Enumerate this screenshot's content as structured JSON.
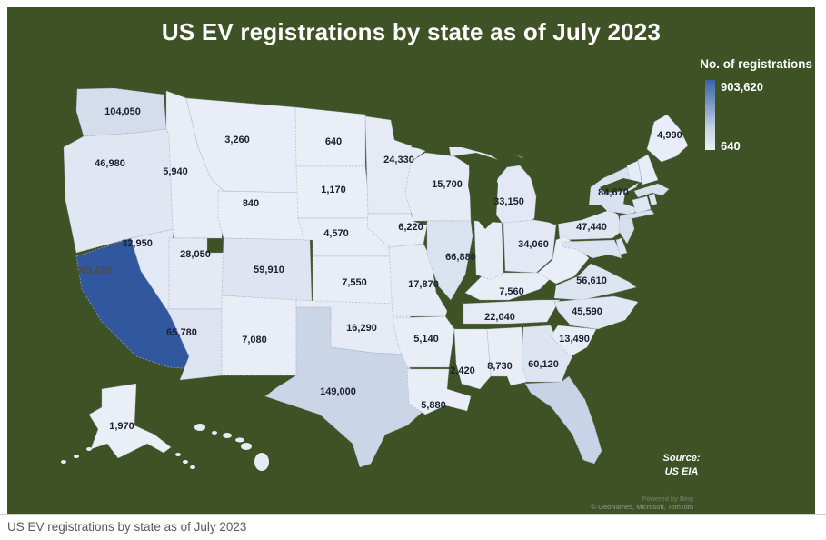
{
  "page": {
    "title": "US EV registrations by state as of July 2023",
    "caption": "US EV registrations by state as of July 2023"
  },
  "legend": {
    "title": "No. of registrations",
    "max_label": "903,620",
    "min_label": "640"
  },
  "source": {
    "label": "Source:",
    "value": "US EIA"
  },
  "attribution": {
    "line1": "Powered by Bing",
    "line2": "© GeoNames, Microsoft, TomTom"
  },
  "colors": {
    "background": "#3e5226",
    "state_low": "#eaeef7",
    "state_high": "#31589f",
    "state_border": "#a6b1c4",
    "value_label": "#1b2130",
    "ca_value_label": "#4b4f31",
    "caption_text": "#595959"
  },
  "chart_data": {
    "type": "heatmap",
    "subtype": "choropleth-us-states",
    "title": "US EV registrations by state as of July 2023",
    "unit": "EV registrations",
    "legend": {
      "min": 640,
      "max": 903620
    },
    "states": [
      {
        "abbr": "WA",
        "name": "Washington",
        "value": 104050,
        "label": "104,050"
      },
      {
        "abbr": "OR",
        "name": "Oregon",
        "value": 46980,
        "label": "46,980"
      },
      {
        "abbr": "CA",
        "name": "California",
        "value": 903620,
        "label": "903,620"
      },
      {
        "abbr": "NV",
        "name": "Nevada",
        "value": 32950,
        "label": "32,950"
      },
      {
        "abbr": "ID",
        "name": "Idaho",
        "value": 5940,
        "label": "5,940"
      },
      {
        "abbr": "MT",
        "name": "Montana",
        "value": 3260,
        "label": "3,260"
      },
      {
        "abbr": "WY",
        "name": "Wyoming",
        "value": 840,
        "label": "840"
      },
      {
        "abbr": "UT",
        "name": "Utah",
        "value": 28050,
        "label": "28,050"
      },
      {
        "abbr": "CO",
        "name": "Colorado",
        "value": 59910,
        "label": "59,910"
      },
      {
        "abbr": "AZ",
        "name": "Arizona",
        "value": 65780,
        "label": "65,780"
      },
      {
        "abbr": "NM",
        "name": "New Mexico",
        "value": 7080,
        "label": "7,080"
      },
      {
        "abbr": "ND",
        "name": "North Dakota",
        "value": 640,
        "label": "640"
      },
      {
        "abbr": "SD",
        "name": "South Dakota",
        "value": 1170,
        "label": "1,170"
      },
      {
        "abbr": "NE",
        "name": "Nebraska",
        "value": 4570,
        "label": "4,570"
      },
      {
        "abbr": "KS",
        "name": "Kansas",
        "value": 7550,
        "label": "7,550"
      },
      {
        "abbr": "OK",
        "name": "Oklahoma",
        "value": 16290,
        "label": "16,290"
      },
      {
        "abbr": "TX",
        "name": "Texas",
        "value": 149000,
        "label": "149,000"
      },
      {
        "abbr": "MN",
        "name": "Minnesota",
        "value": 24330,
        "label": "24,330"
      },
      {
        "abbr": "IA",
        "name": "Iowa",
        "value": 6220,
        "label": "6,220"
      },
      {
        "abbr": "MO",
        "name": "Missouri",
        "value": 17870,
        "label": "17,870"
      },
      {
        "abbr": "AR",
        "name": "Arkansas",
        "value": 5140,
        "label": "5,140"
      },
      {
        "abbr": "LA",
        "name": "Louisiana",
        "value": 5880,
        "label": "5,880"
      },
      {
        "abbr": "WI",
        "name": "Wisconsin",
        "value": 15700,
        "label": "15,700"
      },
      {
        "abbr": "IL",
        "name": "Illinois",
        "value": 66880,
        "label": "66,880"
      },
      {
        "abbr": "MI",
        "name": "Michigan",
        "value": 33150,
        "label": "33,150"
      },
      {
        "abbr": "OH",
        "name": "Ohio",
        "value": 34060,
        "label": "34,060"
      },
      {
        "abbr": "KY",
        "name": "Kentucky",
        "value": 7560,
        "label": "7,560"
      },
      {
        "abbr": "TN",
        "name": "Tennessee",
        "value": 22040,
        "label": "22,040"
      },
      {
        "abbr": "MS",
        "name": "Mississippi",
        "value": 2420,
        "label": "2,420"
      },
      {
        "abbr": "AL",
        "name": "Alabama",
        "value": 8730,
        "label": "8,730"
      },
      {
        "abbr": "GA",
        "name": "Georgia",
        "value": 60120,
        "label": "60,120"
      },
      {
        "abbr": "SC",
        "name": "South Carolina",
        "value": 13490,
        "label": "13,490"
      },
      {
        "abbr": "NC",
        "name": "North Carolina",
        "value": 45590,
        "label": "45,590"
      },
      {
        "abbr": "VA",
        "name": "Virginia",
        "value": 56610,
        "label": "56,610"
      },
      {
        "abbr": "PA",
        "name": "Pennsylvania",
        "value": 47440,
        "label": "47,440"
      },
      {
        "abbr": "NY",
        "name": "New York",
        "value": 84670,
        "label": "84,670"
      },
      {
        "abbr": "ME",
        "name": "Maine",
        "value": 4990,
        "label": "4,990"
      },
      {
        "abbr": "AK",
        "name": "Alaska",
        "value": 1970,
        "label": "1,970"
      }
    ],
    "states_shown_without_value_label": [
      {
        "abbr": "IN",
        "name": "Indiana",
        "fill": "#e7ebf6"
      },
      {
        "abbr": "WV",
        "name": "West Virginia",
        "fill": "#eaeef7"
      },
      {
        "abbr": "FL",
        "name": "Florida",
        "fill": "#c7d3e7"
      },
      {
        "abbr": "VT",
        "name": "Vermont",
        "fill": "#e6ebf5"
      },
      {
        "abbr": "NH",
        "name": "New Hampshire",
        "fill": "#e8ecf6"
      },
      {
        "abbr": "MA",
        "name": "Massachusetts",
        "fill": "#d9e0ee"
      },
      {
        "abbr": "RI",
        "name": "Rhode Island",
        "fill": "#dde4f1"
      },
      {
        "abbr": "CT",
        "name": "Connecticut",
        "fill": "#dfe5f1"
      },
      {
        "abbr": "NJ",
        "name": "New Jersey",
        "fill": "#d7dfee"
      },
      {
        "abbr": "MD",
        "name": "Maryland",
        "fill": "#dce3f0"
      },
      {
        "abbr": "DE",
        "name": "Delaware",
        "fill": "#dde4f1"
      },
      {
        "abbr": "HI",
        "name": "Hawaii",
        "fill": "#e7ebf6"
      }
    ]
  }
}
